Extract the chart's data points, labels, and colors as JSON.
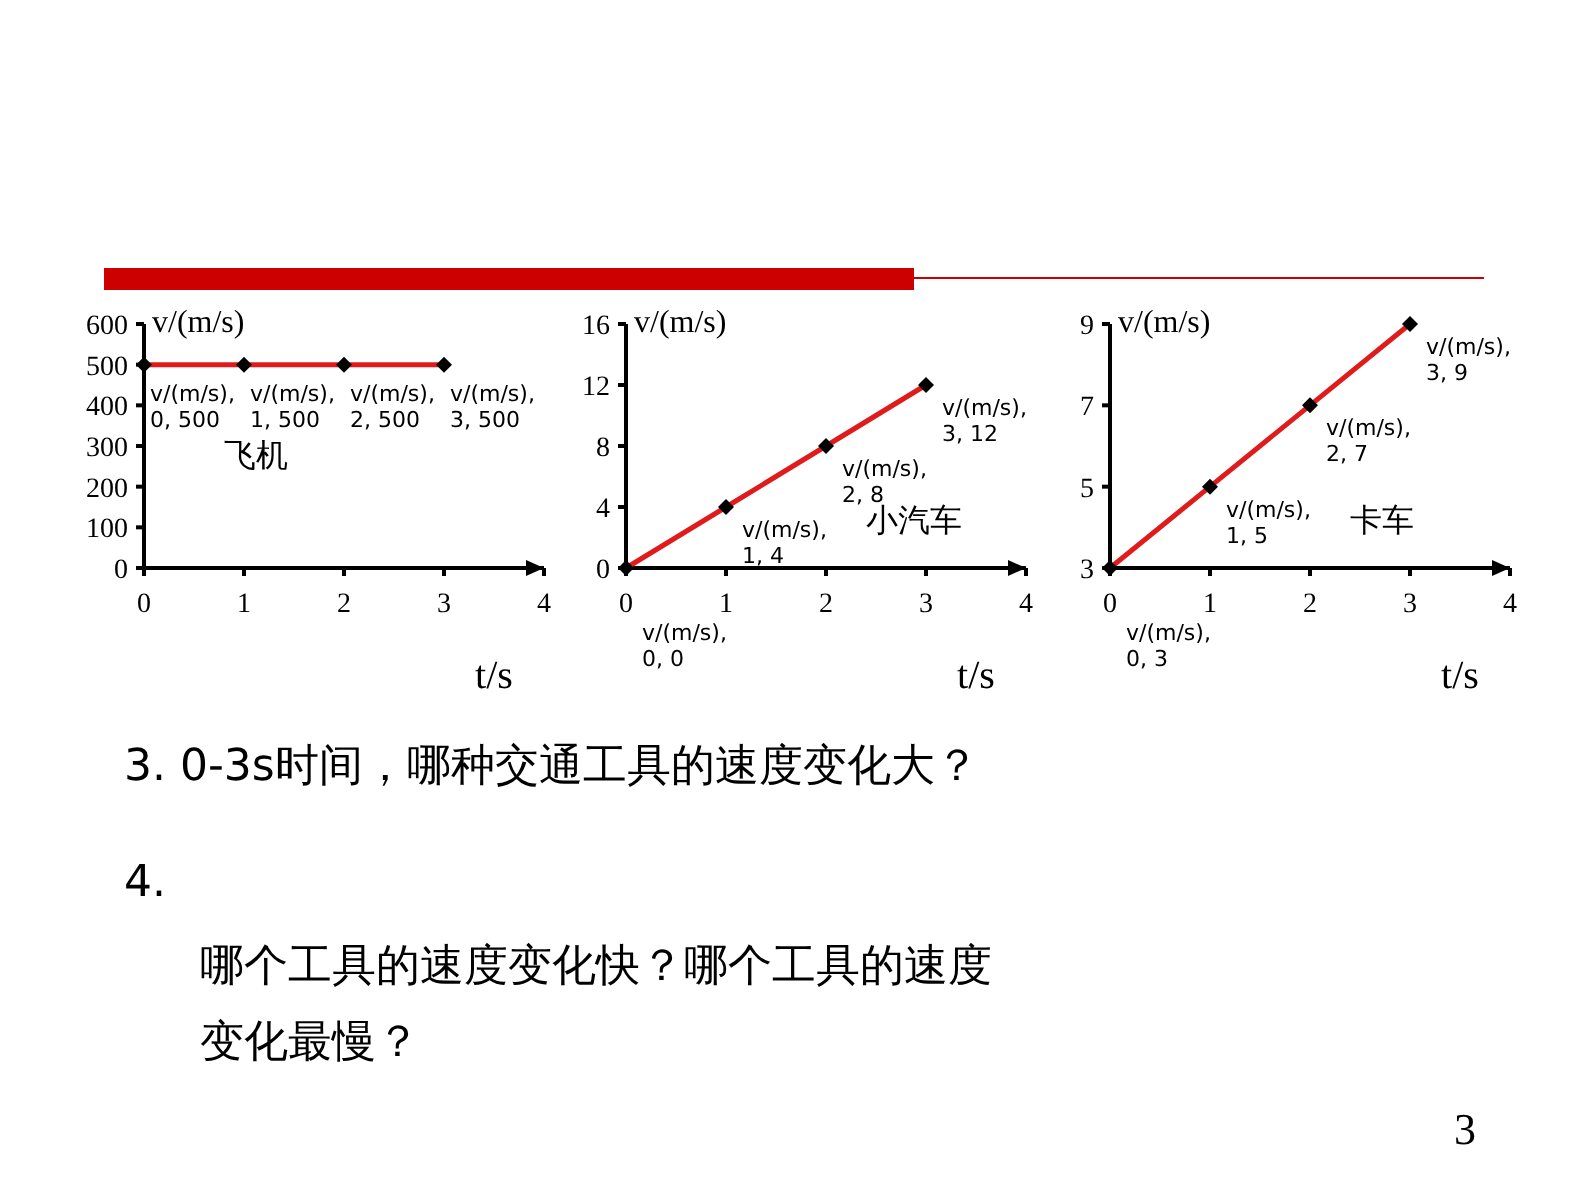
{
  "chart_data": [
    {
      "type": "line",
      "xlabel": "t/s",
      "ylabel": "v/(m/s)",
      "x": [
        0,
        1,
        2,
        3
      ],
      "xlim": [
        0,
        4
      ],
      "xticks": [
        0,
        1,
        2,
        3,
        4
      ],
      "ylim": [
        0,
        600
      ],
      "yticks": [
        0,
        100,
        200,
        300,
        400,
        500,
        600
      ],
      "marker": "diamond",
      "grid": false,
      "series": [
        {
          "color": "#e01b1b",
          "values": [
            500,
            500,
            500,
            500
          ]
        }
      ],
      "annotations": [
        {
          "text": "v/(m/s), 0, 500",
          "x": 0,
          "y": 500
        },
        {
          "text": "v/(m/s), 1, 500",
          "x": 1,
          "y": 500
        },
        {
          "text": "v/(m/s), 2, 500",
          "x": 2,
          "y": 500
        },
        {
          "text": "v/(m/s), 3, 500",
          "x": 3,
          "y": 500
        },
        "飞机"
      ]
    },
    {
      "type": "line",
      "xlabel": "t/s",
      "ylabel": "v/(m/s)",
      "x": [
        0,
        1,
        2,
        3
      ],
      "xlim": [
        0,
        4
      ],
      "xticks": [
        0,
        1,
        2,
        3,
        4
      ],
      "ylim": [
        0,
        16
      ],
      "yticks": [
        0,
        4,
        8,
        12,
        16
      ],
      "marker": "diamond",
      "grid": false,
      "series": [
        {
          "color": "#e01b1b",
          "values": [
            0,
            4,
            8,
            12
          ]
        }
      ],
      "annotations": [
        {
          "text": "v/(m/s), 0, 0",
          "x": 0,
          "y": 0
        },
        {
          "text": "v/(m/s), 1, 4",
          "x": 1,
          "y": 4
        },
        {
          "text": "v/(m/s), 2, 8",
          "x": 2,
          "y": 8
        },
        {
          "text": "v/(m/s), 3, 12",
          "x": 3,
          "y": 12
        },
        "小汽车"
      ]
    },
    {
      "type": "line",
      "xlabel": "t/s",
      "ylabel": "v/(m/s)",
      "x": [
        0,
        1,
        2,
        3
      ],
      "xlim": [
        0,
        4
      ],
      "xticks": [
        0,
        1,
        2,
        3,
        4
      ],
      "ylim": [
        3,
        9
      ],
      "yticks": [
        3,
        5,
        7,
        9
      ],
      "marker": "diamond",
      "grid": false,
      "series": [
        {
          "color": "#e01b1b",
          "values": [
            3,
            5,
            7,
            9
          ]
        }
      ],
      "annotations": [
        {
          "text": "v/(m/s), 0, 3",
          "x": 0,
          "y": 3
        },
        {
          "text": "v/(m/s), 1, 5",
          "x": 1,
          "y": 5
        },
        {
          "text": "v/(m/s), 2, 7",
          "x": 2,
          "y": 7
        },
        {
          "text": "v/(m/s), 3, 9",
          "x": 3,
          "y": 9
        },
        "卡车"
      ]
    },
    {
      "type": "other",
      "annotations": [
        "3. 0-3s时间，哪种交通工具的速度变化大？",
        "4.",
        "哪个工具的速度变化快？哪个工具的速度变化最慢？",
        "3"
      ]
    }
  ]
}
